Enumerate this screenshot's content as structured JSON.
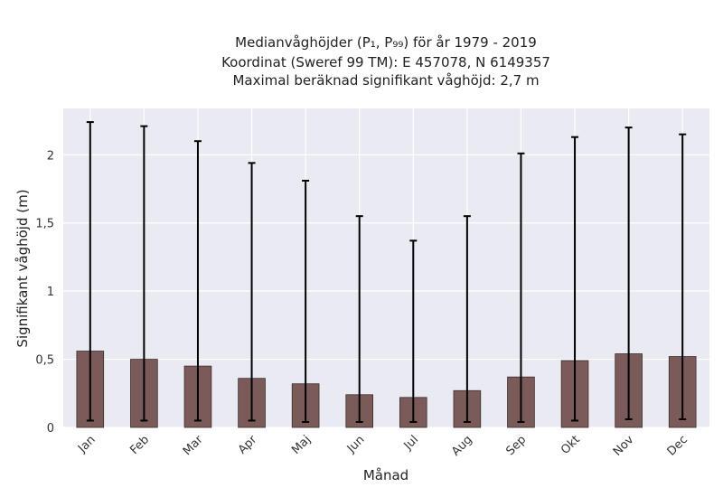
{
  "chart_data": {
    "type": "bar",
    "title_lines": [
      "Medianvåghöjder (P₁, P₉₉) för år 1979 - 2019",
      "Koordinat (Sweref 99 TM): E 457078, N 6149357",
      "Maximal beräknad signifikant våghöjd: 2,7 m"
    ],
    "xlabel": "Månad",
    "ylabel": "Signifikant våghöjd (m)",
    "categories": [
      "Jan",
      "Feb",
      "Mar",
      "Apr",
      "Maj",
      "Jun",
      "Jul",
      "Aug",
      "Sep",
      "Okt",
      "Nov",
      "Dec"
    ],
    "values": [
      0.56,
      0.5,
      0.45,
      0.36,
      0.32,
      0.24,
      0.22,
      0.27,
      0.37,
      0.49,
      0.54,
      0.52
    ],
    "p1": [
      0.05,
      0.05,
      0.05,
      0.05,
      0.04,
      0.04,
      0.04,
      0.04,
      0.04,
      0.05,
      0.06,
      0.06
    ],
    "p99": [
      2.24,
      2.21,
      2.1,
      1.94,
      1.81,
      1.55,
      1.37,
      1.55,
      2.01,
      2.13,
      2.2,
      2.15
    ],
    "ylim": [
      0,
      2.34
    ],
    "yticks": [
      0,
      0.5,
      1,
      1.5,
      2
    ],
    "ytick_labels": [
      "0",
      "0,5",
      "1",
      "1,5",
      "2"
    ],
    "grid": true,
    "colors": {
      "bar": "#7b5a5a",
      "bar_edge": "#3b2c2c",
      "errorbar": "#000000",
      "plot_background": "#eaeaf2",
      "grid": "#ffffff"
    }
  }
}
